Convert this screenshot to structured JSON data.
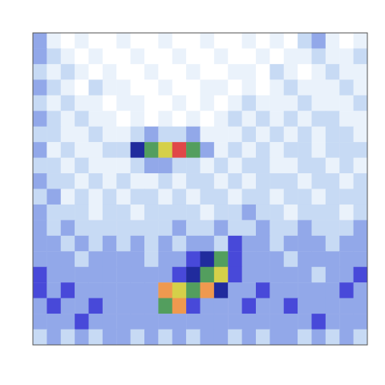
{
  "chart_data": {
    "type": "heatmap",
    "tick_labels": false,
    "cells": [
      [
        3,
        1,
        0,
        1,
        0,
        0,
        1,
        0,
        0,
        1,
        0,
        0,
        1,
        0,
        0,
        1,
        0,
        1,
        0,
        2,
        3,
        1,
        0,
        1
      ],
      [
        3,
        2,
        1,
        0,
        1,
        0,
        0,
        1,
        0,
        0,
        1,
        0,
        0,
        1,
        0,
        0,
        1,
        0,
        1,
        1,
        2,
        1,
        1,
        2
      ],
      [
        2,
        1,
        2,
        1,
        0,
        1,
        0,
        0,
        1,
        0,
        0,
        1,
        0,
        0,
        1,
        1,
        0,
        2,
        1,
        0,
        1,
        2,
        1,
        1
      ],
      [
        3,
        2,
        1,
        0,
        2,
        1,
        1,
        0,
        0,
        1,
        0,
        0,
        1,
        1,
        0,
        1,
        0,
        1,
        2,
        1,
        1,
        1,
        2,
        1
      ],
      [
        2,
        1,
        2,
        1,
        1,
        0,
        1,
        1,
        0,
        0,
        1,
        0,
        1,
        0,
        1,
        2,
        1,
        1,
        1,
        2,
        1,
        1,
        1,
        2
      ],
      [
        3,
        2,
        1,
        2,
        1,
        1,
        0,
        1,
        0,
        1,
        0,
        1,
        0,
        1,
        2,
        1,
        2,
        1,
        2,
        1,
        2,
        2,
        1,
        1
      ],
      [
        2,
        2,
        1,
        1,
        2,
        1,
        1,
        2,
        3,
        2,
        2,
        3,
        1,
        1,
        1,
        2,
        1,
        2,
        1,
        2,
        1,
        2,
        2,
        1
      ],
      [
        3,
        1,
        2,
        1,
        1,
        2,
        2,
        5,
        6,
        7,
        9,
        6,
        3,
        1,
        2,
        1,
        2,
        1,
        2,
        2,
        1,
        2,
        2,
        2
      ],
      [
        2,
        2,
        1,
        2,
        1,
        1,
        1,
        2,
        3,
        3,
        2,
        2,
        1,
        2,
        1,
        2,
        2,
        1,
        1,
        2,
        2,
        1,
        2,
        1
      ],
      [
        3,
        2,
        2,
        1,
        2,
        1,
        2,
        1,
        1,
        2,
        1,
        2,
        2,
        1,
        2,
        1,
        2,
        2,
        2,
        1,
        2,
        2,
        1,
        2
      ],
      [
        2,
        3,
        1,
        2,
        1,
        2,
        1,
        2,
        2,
        1,
        2,
        1,
        2,
        2,
        1,
        2,
        2,
        1,
        2,
        2,
        1,
        2,
        2,
        2
      ],
      [
        3,
        2,
        2,
        2,
        1,
        2,
        2,
        1,
        2,
        2,
        2,
        2,
        1,
        2,
        2,
        3,
        2,
        2,
        1,
        2,
        2,
        2,
        1,
        2
      ],
      [
        3,
        2,
        3,
        2,
        2,
        2,
        2,
        2,
        2,
        2,
        3,
        2,
        2,
        3,
        2,
        2,
        3,
        2,
        2,
        3,
        2,
        2,
        2,
        3
      ],
      [
        3,
        3,
        2,
        3,
        2,
        3,
        2,
        3,
        2,
        3,
        2,
        3,
        3,
        2,
        4,
        3,
        3,
        2,
        3,
        3,
        3,
        2,
        3,
        3
      ],
      [
        3,
        3,
        3,
        2,
        3,
        3,
        3,
        3,
        2,
        3,
        3,
        4,
        5,
        6,
        4,
        3,
        3,
        3,
        2,
        3,
        3,
        3,
        3,
        3
      ],
      [
        4,
        3,
        3,
        3,
        3,
        3,
        3,
        3,
        3,
        3,
        4,
        5,
        6,
        7,
        4,
        3,
        3,
        3,
        3,
        3,
        2,
        3,
        3,
        4
      ],
      [
        4,
        3,
        4,
        3,
        3,
        3,
        3,
        3,
        3,
        8,
        7,
        6,
        8,
        5,
        3,
        3,
        4,
        3,
        3,
        3,
        3,
        3,
        4,
        3
      ],
      [
        3,
        4,
        3,
        3,
        4,
        3,
        3,
        3,
        3,
        6,
        8,
        4,
        3,
        3,
        3,
        4,
        3,
        3,
        4,
        3,
        3,
        3,
        3,
        3
      ],
      [
        3,
        3,
        3,
        4,
        3,
        3,
        3,
        3,
        3,
        3,
        3,
        3,
        3,
        3,
        3,
        3,
        3,
        3,
        3,
        3,
        4,
        3,
        3,
        3
      ],
      [
        2,
        3,
        2,
        3,
        2,
        3,
        3,
        2,
        3,
        2,
        3,
        2,
        3,
        3,
        2,
        3,
        2,
        3,
        3,
        2,
        3,
        2,
        3,
        2
      ]
    ]
  }
}
